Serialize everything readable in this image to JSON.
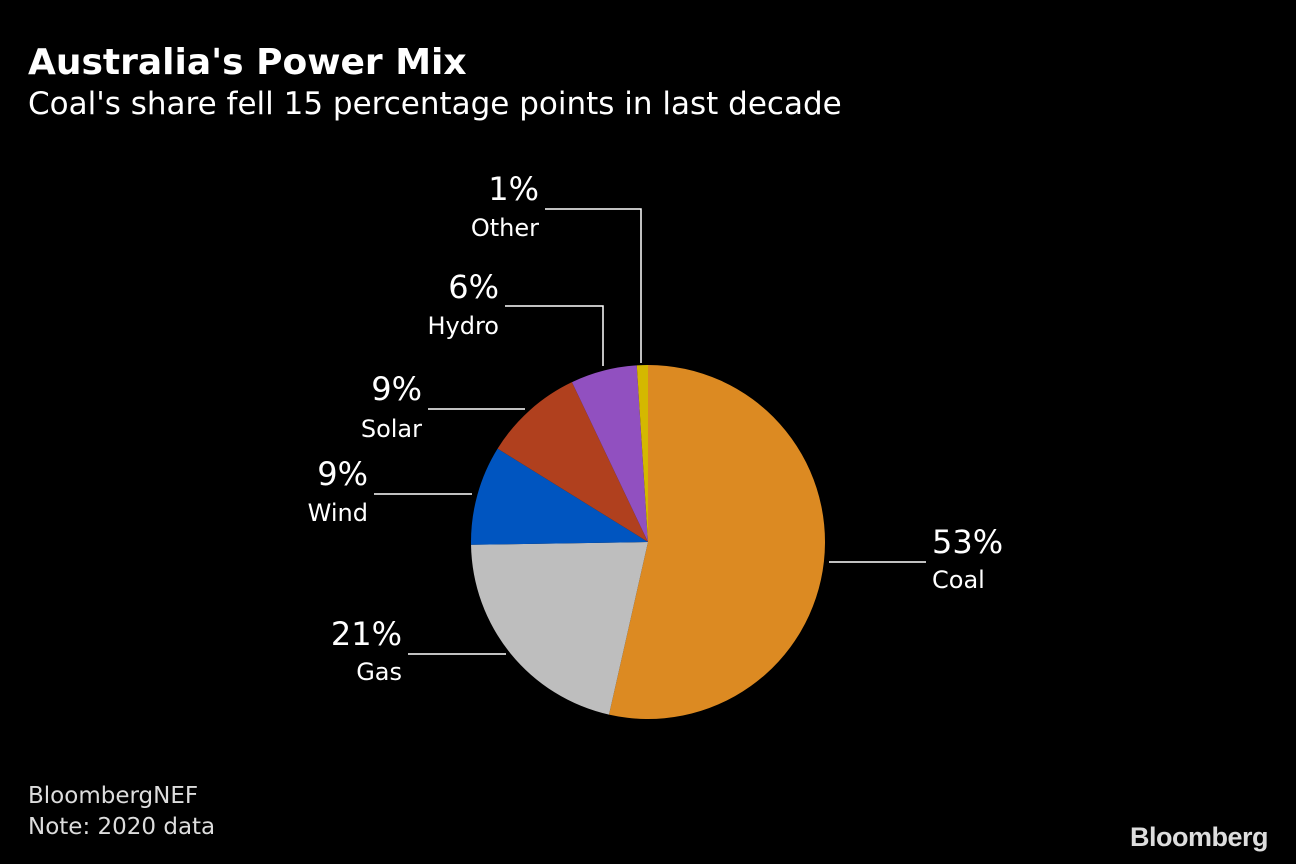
{
  "title": "Australia's Power Mix",
  "subtitle": "Coal's share fell 15 percentage points in last decade",
  "source": "BloombergNEF",
  "note": "Note: 2020 data",
  "logo": "Bloomberg",
  "chart_data": {
    "type": "pie",
    "title": "Australia's Power Mix",
    "subtitle": "Coal's share fell 15 percentage points in last decade",
    "start": "top, clockwise",
    "slices": [
      {
        "name": "Coal",
        "value": 53,
        "label": "53%",
        "color": "#dc8a22"
      },
      {
        "name": "Gas",
        "value": 21,
        "label": "21%",
        "color": "#bebebe"
      },
      {
        "name": "Wind",
        "value": 9,
        "label": "9%",
        "color": "#0055c0"
      },
      {
        "name": "Solar",
        "value": 9,
        "label": "9%",
        "color": "#b0401e"
      },
      {
        "name": "Hydro",
        "value": 6,
        "label": "6%",
        "color": "#9150c0"
      },
      {
        "name": "Other",
        "value": 1,
        "label": "1%",
        "color": "#d4b800"
      }
    ]
  }
}
